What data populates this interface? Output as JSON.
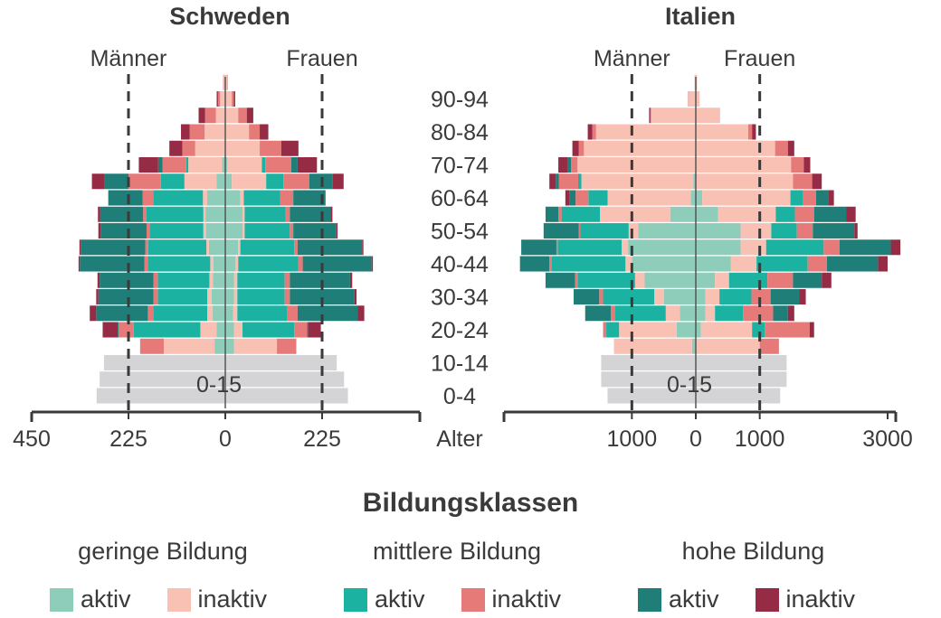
{
  "chart_data": [
    {
      "type": "bar",
      "subtype": "population-pyramid",
      "title": "Schweden",
      "left_label": "Männer",
      "right_label": "Frauen",
      "children_label": "0-15",
      "xlim": [
        -450,
        450
      ],
      "x_ticks": [
        {
          "value": -450,
          "label": "450"
        },
        {
          "value": -225,
          "label": "225"
        },
        {
          "value": 0,
          "label": "0"
        },
        {
          "value": 225,
          "label": "225"
        }
      ],
      "reference_lines": [
        -225,
        225
      ],
      "age_groups": [
        "0-4",
        "5-9",
        "10-14",
        "15-19",
        "20-24",
        "25-29",
        "30-34",
        "35-39",
        "40-44",
        "45-49",
        "50-54",
        "55-59",
        "60-64",
        "65-69",
        "70-74",
        "75-79",
        "80-84",
        "85-89",
        "90-94",
        "95+"
      ],
      "male": {
        "children": [
          299,
          292,
          282,
          0,
          0,
          0,
          0,
          0,
          0,
          0,
          0,
          0,
          0,
          0,
          0,
          0,
          0,
          0,
          0,
          0
        ],
        "geringe_aktiv": [
          0,
          0,
          0,
          25,
          20,
          30,
          32,
          29,
          28,
          38,
          45,
          46,
          42,
          20,
          8,
          0,
          0,
          0,
          0,
          0
        ],
        "geringe_inaktiv": [
          0,
          0,
          0,
          118,
          38,
          12,
          10,
          8,
          7,
          6,
          6,
          5,
          10,
          75,
          78,
          70,
          48,
          22,
          12,
          4
        ],
        "mittlere_aktiv": [
          0,
          0,
          0,
          0,
          155,
          125,
          115,
          120,
          145,
          135,
          125,
          132,
          115,
          55,
          5,
          0,
          0,
          0,
          0,
          0
        ],
        "mittlere_inaktiv": [
          0,
          0,
          0,
          55,
          35,
          13,
          10,
          10,
          8,
          7,
          7,
          8,
          25,
          75,
          55,
          30,
          35,
          25,
          5,
          1
        ],
        "hohe_aktiv": [
          0,
          0,
          0,
          0,
          2,
          120,
          128,
          125,
          150,
          150,
          107,
          100,
          80,
          55,
          10,
          0,
          0,
          0,
          0,
          0
        ],
        "hohe_inaktiv": [
          0,
          0,
          0,
          0,
          35,
          15,
          5,
          5,
          3,
          3,
          5,
          5,
          0,
          30,
          45,
          30,
          20,
          15,
          3,
          0
        ]
      },
      "female": {
        "children": [
          285,
          276,
          259,
          0,
          0,
          0,
          0,
          0,
          0,
          0,
          0,
          0,
          0,
          0,
          0,
          0,
          0,
          0,
          0,
          0
        ],
        "geringe_aktiv": [
          0,
          0,
          0,
          20,
          20,
          18,
          20,
          20,
          24,
          30,
          40,
          40,
          35,
          15,
          5,
          0,
          0,
          0,
          0,
          0
        ],
        "geringe_inaktiv": [
          0,
          0,
          0,
          100,
          20,
          10,
          8,
          8,
          6,
          5,
          5,
          5,
          8,
          80,
          80,
          80,
          55,
          30,
          15,
          5
        ],
        "mittlere_aktiv": [
          0,
          0,
          0,
          0,
          120,
          115,
          110,
          110,
          140,
          125,
          105,
          95,
          85,
          40,
          8,
          0,
          0,
          0,
          0,
          0
        ],
        "mittlere_inaktiv": [
          0,
          0,
          0,
          45,
          30,
          25,
          12,
          12,
          10,
          8,
          8,
          10,
          30,
          60,
          60,
          50,
          25,
          20,
          5,
          1
        ],
        "hohe_aktiv": [
          0,
          0,
          0,
          0,
          2,
          140,
          150,
          140,
          160,
          150,
          100,
          95,
          75,
          55,
          15,
          0,
          0,
          0,
          0,
          0
        ],
        "hohe_inaktiv": [
          0,
          0,
          0,
          0,
          30,
          15,
          5,
          5,
          3,
          3,
          3,
          4,
          0,
          25,
          45,
          40,
          20,
          15,
          3,
          0
        ]
      }
    },
    {
      "type": "bar",
      "subtype": "population-pyramid",
      "title": "Italien",
      "left_label": "Männer",
      "right_label": "Frauen",
      "children_label": "0-15",
      "xlim": [
        -3000,
        3000
      ],
      "x_ticks": [
        {
          "value": -1000,
          "label": "1000"
        },
        {
          "value": 0,
          "label": "0"
        },
        {
          "value": 1000,
          "label": "1000"
        },
        {
          "value": 3000,
          "label": "3000"
        }
      ],
      "reference_lines": [
        -1000,
        1000
      ],
      "age_groups": [
        "0-4",
        "5-9",
        "10-14",
        "15-19",
        "20-24",
        "25-29",
        "30-34",
        "35-39",
        "40-44",
        "45-49",
        "50-54",
        "55-59",
        "60-64",
        "65-69",
        "70-74",
        "75-79",
        "80-84",
        "85-89",
        "90-94",
        "95+"
      ],
      "male": {
        "children": [
          1380,
          1480,
          1480,
          0,
          0,
          0,
          0,
          0,
          0,
          0,
          0,
          0,
          0,
          0,
          0,
          0,
          0,
          0,
          0,
          0
        ],
        "geringe_aktiv": [
          0,
          0,
          0,
          60,
          300,
          250,
          500,
          800,
          1000,
          1060,
          900,
          400,
          80,
          40,
          0,
          0,
          0,
          0,
          0,
          0
        ],
        "geringe_inaktiv": [
          0,
          0,
          0,
          1220,
          900,
          220,
          150,
          150,
          100,
          100,
          150,
          1100,
          1300,
          1750,
          1850,
          1750,
          1560,
          700,
          110,
          20
        ],
        "mittlere_aktiv": [
          0,
          0,
          0,
          0,
          200,
          800,
          800,
          900,
          1150,
          1000,
          760,
          600,
          300,
          50,
          0,
          0,
          0,
          0,
          0,
          0
        ],
        "mittlere_inaktiv": [
          0,
          0,
          0,
          0,
          50,
          60,
          60,
          40,
          40,
          20,
          20,
          50,
          200,
          300,
          100,
          80,
          60,
          10,
          10,
          0
        ],
        "hohe_aktiv": [
          0,
          0,
          0,
          0,
          0,
          400,
          400,
          460,
          460,
          550,
          550,
          200,
          100,
          50,
          50,
          0,
          0,
          0,
          0,
          0
        ],
        "hohe_inaktiv": [
          0,
          0,
          0,
          0,
          0,
          0,
          0,
          0,
          0,
          0,
          0,
          0,
          60,
          100,
          150,
          100,
          70,
          20,
          0,
          0
        ]
      },
      "female": {
        "children": [
          1320,
          1420,
          1420,
          0,
          0,
          0,
          0,
          0,
          0,
          0,
          0,
          0,
          0,
          0,
          0,
          0,
          0,
          0,
          0,
          0
        ],
        "geringe_aktiv": [
          0,
          0,
          0,
          0,
          80,
          150,
          150,
          300,
          550,
          700,
          700,
          350,
          100,
          0,
          0,
          0,
          0,
          0,
          0,
          0
        ],
        "geringe_inaktiv": [
          0,
          0,
          0,
          1000,
          800,
          150,
          220,
          220,
          400,
          400,
          480,
          900,
          1380,
          1520,
          1490,
          1240,
          820,
          380,
          60,
          20
        ],
        "mittlere_aktiv": [
          0,
          0,
          0,
          0,
          200,
          440,
          500,
          600,
          800,
          900,
          400,
          300,
          200,
          0,
          0,
          0,
          0,
          0,
          0,
          0
        ],
        "mittlere_inaktiv": [
          0,
          0,
          0,
          300,
          700,
          470,
          300,
          400,
          300,
          250,
          250,
          300,
          200,
          300,
          200,
          200,
          60,
          0,
          0,
          0
        ],
        "hohe_aktiv": [
          0,
          0,
          0,
          0,
          0,
          230,
          450,
          450,
          800,
          800,
          650,
          500,
          200,
          0,
          0,
          0,
          0,
          0,
          0,
          0
        ],
        "hohe_inaktiv": [
          0,
          0,
          0,
          0,
          70,
          100,
          100,
          150,
          150,
          150,
          50,
          150,
          80,
          150,
          100,
          100,
          60,
          0,
          0,
          0
        ]
      }
    }
  ],
  "age_axis": {
    "labels": [
      "0-4",
      "10-14",
      "20-24",
      "30-34",
      "40-44",
      "50-54",
      "60-64",
      "70-74",
      "80-84",
      "90-94"
    ],
    "title": "Alter"
  },
  "legend": {
    "title": "Bildungsklassen",
    "groups": [
      {
        "title": "geringe Bildung",
        "items": [
          {
            "key": "geringe_aktiv",
            "label": "aktiv",
            "color": "#8dcdb9"
          },
          {
            "key": "geringe_inaktiv",
            "label": "inaktiv",
            "color": "#f8c1b3"
          }
        ]
      },
      {
        "title": "mittlere Bildung",
        "items": [
          {
            "key": "mittlere_aktiv",
            "label": "aktiv",
            "color": "#1bb2a2"
          },
          {
            "key": "mittlere_inaktiv",
            "label": "inaktiv",
            "color": "#e67a79"
          }
        ]
      },
      {
        "title": "hohe Bildung",
        "items": [
          {
            "key": "hohe_aktiv",
            "label": "aktiv",
            "color": "#1f7f78"
          },
          {
            "key": "hohe_inaktiv",
            "label": "inaktiv",
            "color": "#962b46"
          }
        ]
      }
    ],
    "children_color": "#d4d4d6"
  }
}
